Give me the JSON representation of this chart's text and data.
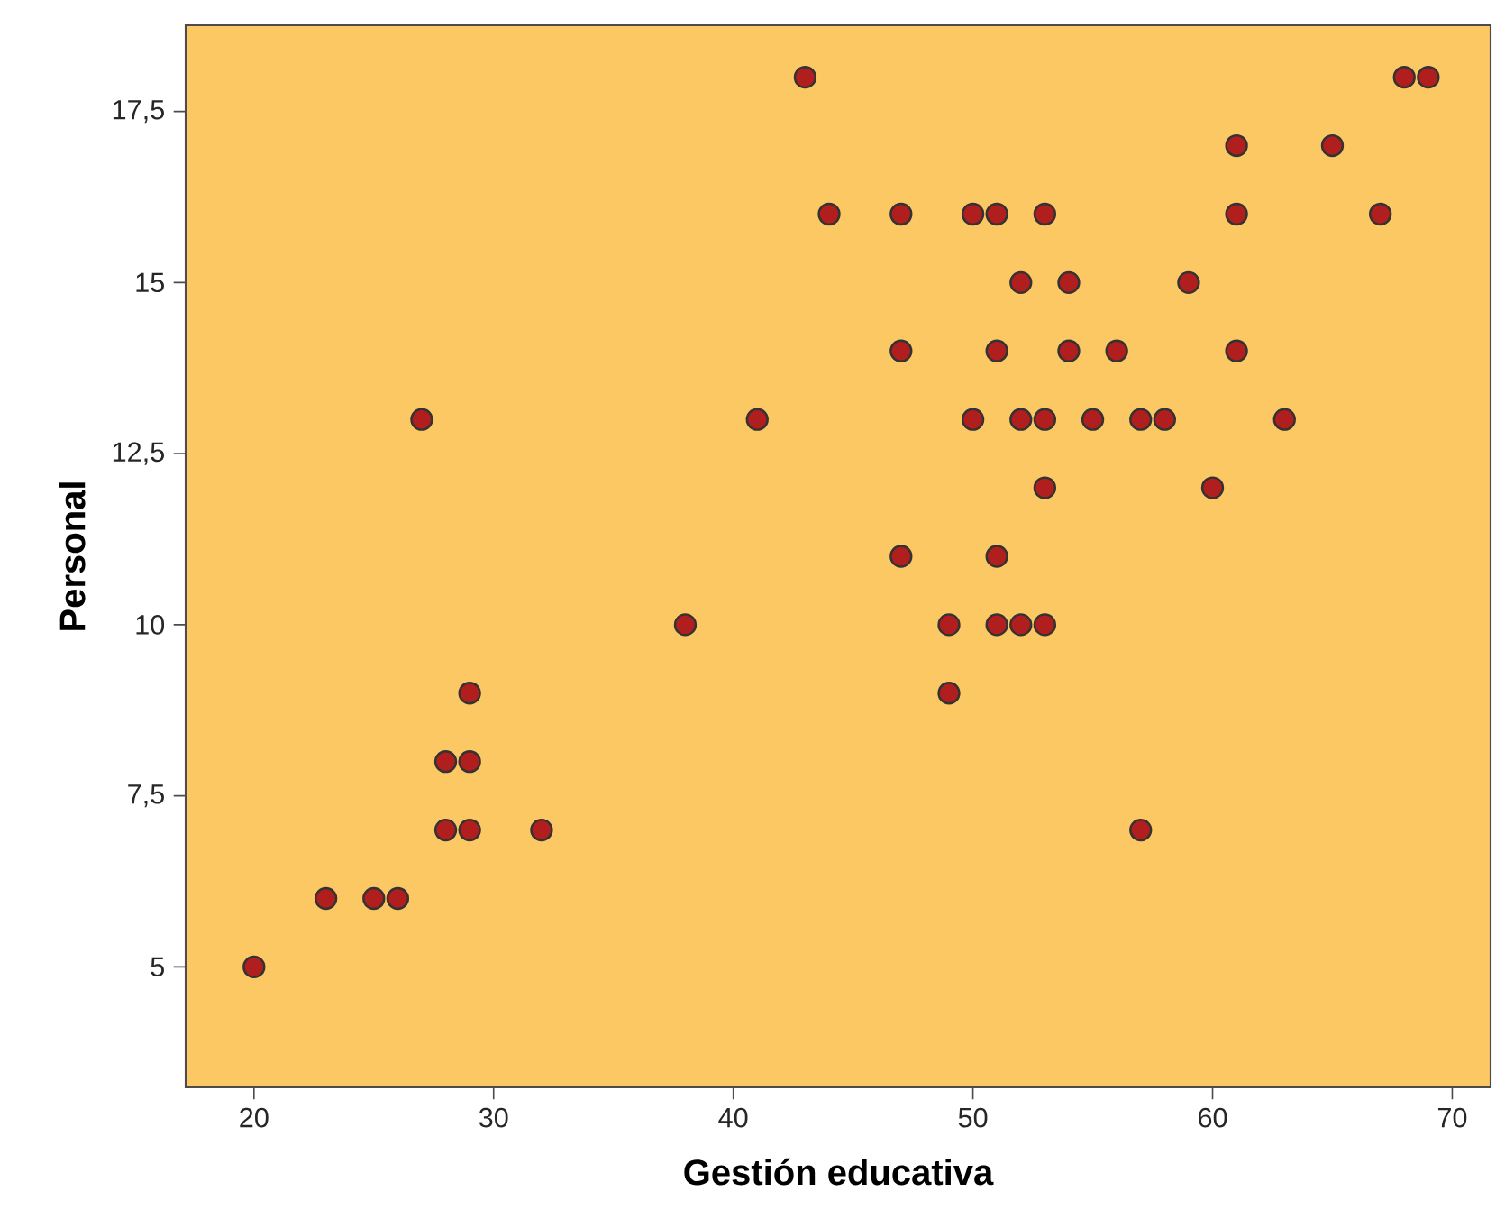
{
  "chart_data": {
    "type": "scatter",
    "xlabel": "Gestión educativa",
    "ylabel": "Personal",
    "xlim": [
      17.15,
      71.6
    ],
    "ylim": [
      3.24,
      18.76
    ],
    "xticks": [
      20,
      30,
      40,
      50,
      60,
      70
    ],
    "yticks": [
      5,
      {
        "value": 7.5,
        "label": "7,5"
      },
      10,
      {
        "value": 12.5,
        "label": "12,5"
      },
      15,
      {
        "value": 17.5,
        "label": "17,5"
      }
    ],
    "grid": false,
    "marker": "circle",
    "series": [
      {
        "color": "#b01e1e",
        "x": [
          20,
          23,
          25,
          26,
          28,
          29,
          28,
          29,
          29,
          32,
          27,
          38,
          41,
          43,
          44,
          47,
          47,
          47,
          49,
          49,
          50,
          50,
          51,
          51,
          51,
          51,
          52,
          52,
          52,
          53,
          53,
          53,
          53,
          54,
          54,
          55,
          56,
          57,
          57,
          58,
          59,
          60,
          61,
          61,
          61,
          63,
          65,
          67,
          68,
          69
        ],
        "values": [
          5,
          6,
          6,
          6,
          8,
          8,
          7,
          7,
          9,
          7,
          13,
          10,
          13,
          18,
          16,
          16,
          14,
          11,
          10,
          9,
          16,
          13,
          16,
          14,
          11,
          10,
          15,
          13,
          10,
          16,
          13,
          12,
          10,
          15,
          14,
          13,
          14,
          13,
          7,
          13,
          15,
          12,
          17,
          16,
          14,
          13,
          17,
          16,
          18,
          18
        ]
      }
    ]
  }
}
